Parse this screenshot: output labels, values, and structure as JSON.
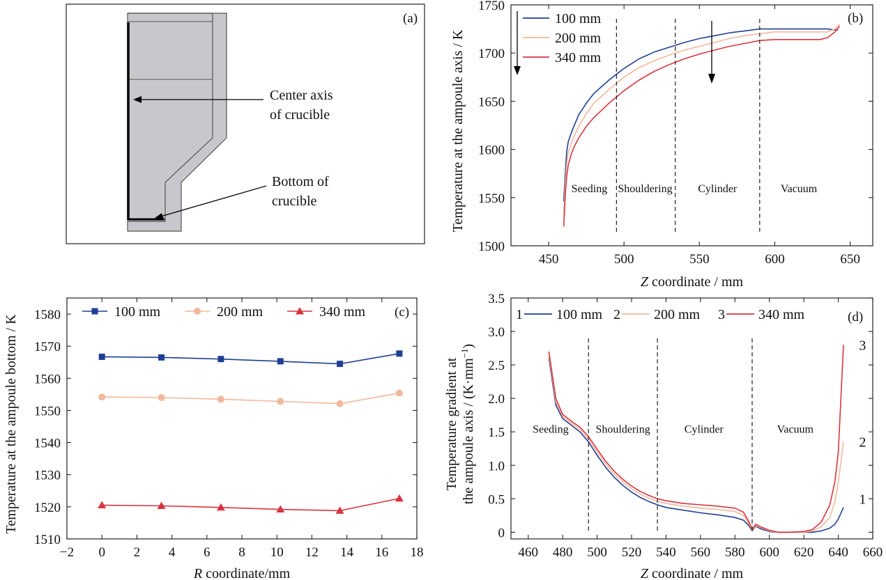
{
  "colors": {
    "c100": "#1f3f94",
    "c200": "#f3b79b",
    "c340": "#d9343f",
    "crucible_fill": "#c8c8cc",
    "crucible_line": "#555555"
  },
  "panel_a": {
    "tag": "(a)",
    "label_center_1": "Center axis",
    "label_center_2": "of crucible",
    "label_bottom_1": "Bottom of",
    "label_bottom_2": "crucible"
  },
  "chart_data": [
    {
      "id": "b",
      "type": "line",
      "tag": "(b)",
      "xlabel_var": "Z",
      "xlabel_rest": " coordinate / mm",
      "ylabel": "Temperature at the ampoule axis / K",
      "xlim": [
        425,
        665
      ],
      "ylim": [
        1500,
        1750
      ],
      "xticks": [
        450,
        500,
        550,
        600,
        650
      ],
      "yticks": [
        1500,
        1550,
        1600,
        1650,
        1700,
        1750
      ],
      "phase_lines": [
        495,
        534,
        590
      ],
      "phases": [
        {
          "label": "Seeding",
          "x": 477
        },
        {
          "label": "Shouldering",
          "x": 514
        },
        {
          "label": "Cylinder",
          "x": 562
        },
        {
          "label": "Vacuum",
          "x": 616
        }
      ],
      "phase_y": 1560,
      "legend": [
        "100 mm",
        "200 mm",
        "340 mm"
      ],
      "series": [
        {
          "name": "100 mm",
          "color_key": "c100",
          "x": [
            460,
            461,
            462,
            463,
            465,
            467,
            470,
            475,
            480,
            490,
            500,
            510,
            520,
            530,
            540,
            550,
            560,
            570,
            580,
            590,
            600,
            610,
            620,
            630,
            635,
            640,
            642
          ],
          "y": [
            1546,
            1575,
            1598,
            1608,
            1617,
            1625,
            1636,
            1648,
            1658,
            1672,
            1684,
            1694,
            1701,
            1706,
            1711,
            1715,
            1718,
            1721,
            1723,
            1725,
            1725,
            1725,
            1725,
            1725,
            1725,
            1724,
            1724
          ]
        },
        {
          "name": "200 mm",
          "color_key": "c200",
          "x": [
            460,
            461,
            462,
            463,
            465,
            467,
            470,
            475,
            480,
            490,
            500,
            510,
            520,
            530,
            540,
            550,
            560,
            570,
            580,
            590,
            600,
            610,
            620,
            630,
            635,
            640,
            643
          ],
          "y": [
            1532,
            1565,
            1585,
            1597,
            1606,
            1614,
            1624,
            1637,
            1648,
            1662,
            1675,
            1685,
            1692,
            1698,
            1703,
            1707,
            1711,
            1715,
            1718,
            1720,
            1722,
            1722,
            1722,
            1722,
            1722,
            1725,
            1730
          ]
        },
        {
          "name": "340 mm",
          "color_key": "c340",
          "x": [
            460,
            461,
            462,
            463,
            465,
            467,
            470,
            475,
            480,
            490,
            500,
            510,
            520,
            530,
            540,
            550,
            560,
            570,
            580,
            590,
            600,
            610,
            620,
            630,
            635,
            640,
            643
          ],
          "y": [
            1520,
            1553,
            1572,
            1584,
            1595,
            1603,
            1612,
            1624,
            1633,
            1648,
            1661,
            1672,
            1681,
            1688,
            1694,
            1699,
            1703,
            1707,
            1710,
            1713,
            1714,
            1714,
            1714,
            1714,
            1716,
            1722,
            1728
          ]
        }
      ]
    },
    {
      "id": "c",
      "type": "line",
      "tag": "(c)",
      "xlabel_var": "R",
      "xlabel_rest": " coordinate/mm",
      "ylabel": "Temperature at the ampoule bottom / K",
      "xlim": [
        -2,
        18
      ],
      "ylim": [
        1510,
        1585
      ],
      "xticks": [
        -2,
        0,
        2,
        4,
        6,
        8,
        10,
        12,
        14,
        16,
        18
      ],
      "yticks": [
        1510,
        1520,
        1530,
        1540,
        1550,
        1560,
        1570,
        1580
      ],
      "legend": [
        "100 mm",
        "200 mm",
        "340 mm"
      ],
      "series": [
        {
          "name": "100 mm",
          "color_key": "c100",
          "marker": "square",
          "x": [
            0,
            3.4,
            6.8,
            10.2,
            13.6,
            17
          ],
          "y": [
            1566.7,
            1566.5,
            1566.0,
            1565.3,
            1564.5,
            1567.7
          ]
        },
        {
          "name": "200 mm",
          "color_key": "c200",
          "marker": "circle",
          "x": [
            0,
            3.4,
            6.8,
            10.2,
            13.6,
            17
          ],
          "y": [
            1554.2,
            1554.0,
            1553.5,
            1552.8,
            1552.1,
            1555.4
          ]
        },
        {
          "name": "340 mm",
          "color_key": "c340",
          "marker": "triangle",
          "x": [
            0,
            3.4,
            6.8,
            10.2,
            13.6,
            17
          ],
          "y": [
            1520.5,
            1520.3,
            1519.8,
            1519.2,
            1518.8,
            1522.6
          ]
        }
      ]
    },
    {
      "id": "d",
      "type": "line",
      "tag": "(d)",
      "xlabel_var": "Z",
      "xlabel_rest": " coordinate / mm",
      "ylabel_1": "Temperature gradient  at",
      "ylabel_2": "the ampoule axis / (K·mm",
      "ylabel_sup": "−1",
      "ylabel_end": ")",
      "xlim": [
        450,
        660
      ],
      "ylim": [
        -0.1,
        3.5
      ],
      "xticks": [
        460,
        480,
        500,
        520,
        540,
        560,
        580,
        600,
        620,
        640,
        660
      ],
      "yticks": [
        0,
        0.5,
        1.0,
        1.5,
        2.0,
        2.5,
        3.0,
        3.5
      ],
      "ytick_labels": [
        "0",
        "0.5",
        "1.0",
        "1.5",
        "2.0",
        "2.5",
        "3.0",
        "3.5"
      ],
      "phase_lines": [
        495,
        535,
        590
      ],
      "phases": [
        {
          "label": "Seeding",
          "x": 473
        },
        {
          "label": "Shouldering",
          "x": 515
        },
        {
          "label": "Cylinder",
          "x": 562
        },
        {
          "label": "Vacuum",
          "x": 615
        }
      ],
      "phase_y": 1.55,
      "legend_nums": [
        "1",
        "2",
        "3"
      ],
      "legend": [
        "100 mm",
        "200 mm",
        "340 mm"
      ],
      "end_labels": [
        {
          "text": "1",
          "x": 646,
          "y": 0.5
        },
        {
          "text": "2",
          "x": 646,
          "y": 1.35
        },
        {
          "text": "3",
          "x": 646,
          "y": 2.8
        }
      ],
      "series": [
        {
          "name": "100 mm",
          "color_key": "c100",
          "x": [
            472,
            476,
            480,
            485,
            490,
            495,
            500,
            505,
            510,
            515,
            520,
            525,
            530,
            535,
            540,
            550,
            560,
            570,
            580,
            585,
            588,
            590,
            592,
            595,
            600,
            605,
            610,
            620,
            625,
            630,
            635,
            638,
            640,
            643
          ],
          "y": [
            2.6,
            1.9,
            1.7,
            1.6,
            1.5,
            1.35,
            1.15,
            0.97,
            0.82,
            0.7,
            0.6,
            0.52,
            0.46,
            0.41,
            0.37,
            0.33,
            0.29,
            0.26,
            0.22,
            0.18,
            0.1,
            0.02,
            0.09,
            0.05,
            0.01,
            0.0,
            0.0,
            0.0,
            0.0,
            0.02,
            0.06,
            0.12,
            0.2,
            0.37
          ]
        },
        {
          "name": "200 mm",
          "color_key": "c200",
          "x": [
            472,
            476,
            480,
            485,
            490,
            495,
            500,
            505,
            510,
            515,
            520,
            525,
            530,
            535,
            540,
            550,
            560,
            570,
            580,
            585,
            588,
            590,
            592,
            595,
            600,
            605,
            610,
            620,
            625,
            630,
            635,
            638,
            640,
            643
          ],
          "y": [
            2.65,
            1.95,
            1.73,
            1.63,
            1.54,
            1.39,
            1.2,
            1.02,
            0.87,
            0.75,
            0.65,
            0.57,
            0.51,
            0.46,
            0.43,
            0.39,
            0.36,
            0.34,
            0.31,
            0.25,
            0.13,
            0.03,
            0.1,
            0.07,
            0.02,
            0.0,
            0.0,
            0.0,
            0.02,
            0.08,
            0.22,
            0.45,
            0.75,
            1.35
          ]
        },
        {
          "name": "340 mm",
          "color_key": "c340",
          "x": [
            472,
            476,
            480,
            485,
            490,
            495,
            500,
            505,
            510,
            515,
            520,
            525,
            530,
            535,
            540,
            550,
            560,
            570,
            580,
            585,
            588,
            590,
            592,
            595,
            600,
            605,
            610,
            620,
            625,
            630,
            635,
            638,
            640,
            643
          ],
          "y": [
            2.7,
            2.0,
            1.76,
            1.66,
            1.57,
            1.43,
            1.24,
            1.06,
            0.91,
            0.79,
            0.69,
            0.61,
            0.55,
            0.5,
            0.47,
            0.43,
            0.41,
            0.39,
            0.36,
            0.3,
            0.16,
            0.04,
            0.12,
            0.08,
            0.03,
            0.0,
            0.0,
            0.01,
            0.04,
            0.15,
            0.4,
            0.75,
            1.2,
            2.8
          ]
        }
      ]
    }
  ]
}
